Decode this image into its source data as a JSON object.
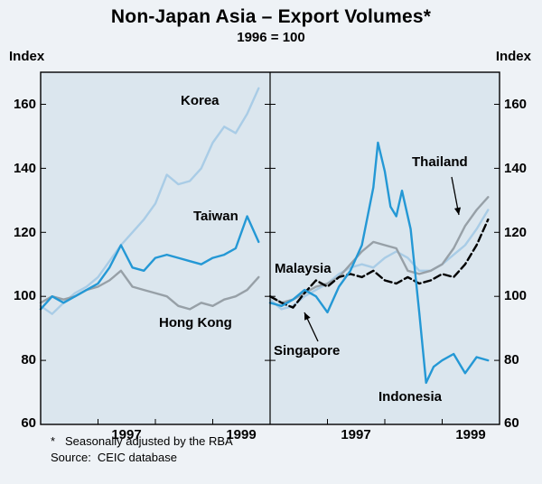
{
  "chart_data": {
    "type": "line",
    "title": "Non-Japan Asia – Export Volumes*",
    "subtitle": "1996 = 100",
    "unit": "Index",
    "ylim": [
      60,
      160
    ],
    "yticks": [
      160,
      140,
      120,
      100,
      80,
      60
    ],
    "xlim": [
      1996,
      2000
    ],
    "x_year_labels": [
      "1997",
      "1999"
    ],
    "grid": false,
    "legend": "inline-labels",
    "panels": [
      {
        "side": "left",
        "series": [
          {
            "name": "Korea",
            "color": "#a9cce6",
            "style": "solid",
            "x": [
              1996.0,
              1996.2,
              1996.4,
              1996.6,
              1996.8,
              1997.0,
              1997.2,
              1997.4,
              1997.6,
              1997.8,
              1998.0,
              1998.2,
              1998.4,
              1998.6,
              1998.8,
              1999.0,
              1999.2,
              1999.4,
              1999.6,
              1999.8
            ],
            "values": [
              97,
              94.5,
              98,
              101,
              103,
              106,
              111,
              116,
              120,
              124,
              129,
              138,
              135,
              136,
              140,
              148,
              153,
              151,
              157,
              165
            ]
          },
          {
            "name": "Hong Kong",
            "color": "#97a0a7",
            "style": "solid",
            "x": [
              1996.0,
              1996.2,
              1996.4,
              1996.6,
              1996.8,
              1997.0,
              1997.2,
              1997.4,
              1997.6,
              1997.8,
              1998.0,
              1998.2,
              1998.4,
              1998.6,
              1998.8,
              1999.0,
              1999.2,
              1999.4,
              1999.6,
              1999.8
            ],
            "values": [
              98,
              100,
              99,
              100,
              102,
              103,
              105,
              108,
              103,
              102,
              101,
              100,
              97,
              96,
              98,
              97,
              99,
              100,
              102,
              106
            ]
          },
          {
            "name": "Taiwan",
            "color": "#2498d5",
            "style": "solid",
            "x": [
              1996.0,
              1996.2,
              1996.4,
              1996.6,
              1996.8,
              1997.0,
              1997.2,
              1997.4,
              1997.6,
              1997.8,
              1998.0,
              1998.2,
              1998.4,
              1998.6,
              1998.8,
              1999.0,
              1999.2,
              1999.4,
              1999.6,
              1999.8
            ],
            "values": [
              96,
              100,
              98,
              100,
              102,
              104,
              109,
              116,
              109,
              108,
              112,
              113,
              112,
              111,
              110,
              112,
              113,
              115,
              125,
              117
            ]
          }
        ]
      },
      {
        "side": "right",
        "series": [
          {
            "name": "Malaysia",
            "color": "#a9cce6",
            "style": "solid",
            "x": [
              1996.0,
              1996.2,
              1996.4,
              1996.6,
              1996.8,
              1997.0,
              1997.2,
              1997.4,
              1997.6,
              1997.8,
              1998.0,
              1998.2,
              1998.4,
              1998.6,
              1998.8,
              1999.0,
              1999.2,
              1999.4,
              1999.6,
              1999.8
            ],
            "values": [
              99,
              96,
              97,
              100,
              102,
              104,
              107,
              109,
              110,
              109,
              112,
              114,
              112,
              108,
              108,
              110,
              113,
              116,
              121,
              127
            ]
          },
          {
            "name": "Thailand",
            "color": "#97a0a7",
            "style": "solid",
            "x": [
              1996.0,
              1996.2,
              1996.4,
              1996.6,
              1996.8,
              1997.0,
              1997.2,
              1997.4,
              1997.6,
              1997.8,
              1998.0,
              1998.2,
              1998.4,
              1998.6,
              1998.8,
              1999.0,
              1999.2,
              1999.4,
              1999.6,
              1999.8
            ],
            "values": [
              100,
              98,
              99,
              101,
              103,
              104,
              106,
              110,
              114,
              117,
              116,
              115,
              108,
              107,
              108,
              110,
              115,
              122,
              127,
              131
            ]
          },
          {
            "name": "Singapore",
            "color": "#000000",
            "style": "dashed",
            "x": [
              1996.0,
              1996.2,
              1996.4,
              1996.6,
              1996.8,
              1997.0,
              1997.2,
              1997.4,
              1997.6,
              1997.8,
              1998.0,
              1998.2,
              1998.4,
              1998.6,
              1998.8,
              1999.0,
              1999.2,
              1999.4,
              1999.6,
              1999.8
            ],
            "values": [
              100,
              98,
              96.5,
              101,
              105,
              103,
              106,
              107,
              106,
              108,
              105,
              104,
              106,
              104,
              105,
              107,
              106,
              110,
              116,
              124
            ]
          },
          {
            "name": "Indonesia",
            "color": "#2498d5",
            "style": "solid",
            "x": [
              1996.0,
              1996.2,
              1996.4,
              1996.6,
              1996.8,
              1997.0,
              1997.2,
              1997.4,
              1997.6,
              1997.8,
              1997.88,
              1998.0,
              1998.1,
              1998.2,
              1998.3,
              1998.45,
              1998.6,
              1998.72,
              1998.85,
              1999.0,
              1999.2,
              1999.4,
              1999.6,
              1999.8
            ],
            "values": [
              98,
              97,
              99,
              102,
              100,
              95,
              103,
              108,
              116,
              134,
              148,
              139,
              128,
              125,
              133,
              121,
              95,
              73,
              78,
              80,
              82,
              76,
              81,
              80
            ]
          }
        ]
      }
    ]
  },
  "footnotes": {
    "marker": "*",
    "text": "Seasonally adjusted by the RBA",
    "source_label": "Source:",
    "source_text": "CEIC database"
  }
}
